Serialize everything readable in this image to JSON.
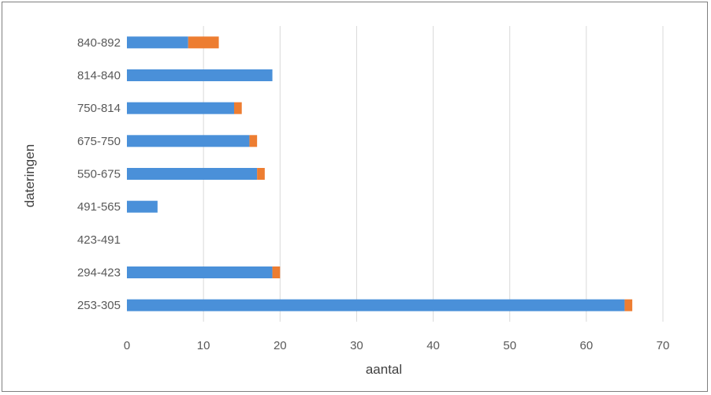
{
  "chart_data": {
    "type": "bar",
    "orientation": "horizontal",
    "stacked": true,
    "categories": [
      "253-305",
      "294-423",
      "423-491",
      "491-565",
      "550-675",
      "675-750",
      "750-814",
      "814-840",
      "840-892"
    ],
    "series": [
      {
        "values": [
          65,
          19,
          0,
          4,
          17,
          16,
          14,
          19,
          8
        ],
        "color": "#4a90d9"
      },
      {
        "values": [
          1,
          1,
          0,
          0,
          1,
          1,
          1,
          0,
          4
        ],
        "color": "#ed7d31"
      }
    ],
    "xlabel": "aantal",
    "ylabel": "dateringen",
    "xlim": [
      0,
      70
    ],
    "xticks": [
      0,
      10,
      20,
      30,
      40,
      50,
      60,
      70
    ],
    "grid": "vertical",
    "legend": "none"
  }
}
